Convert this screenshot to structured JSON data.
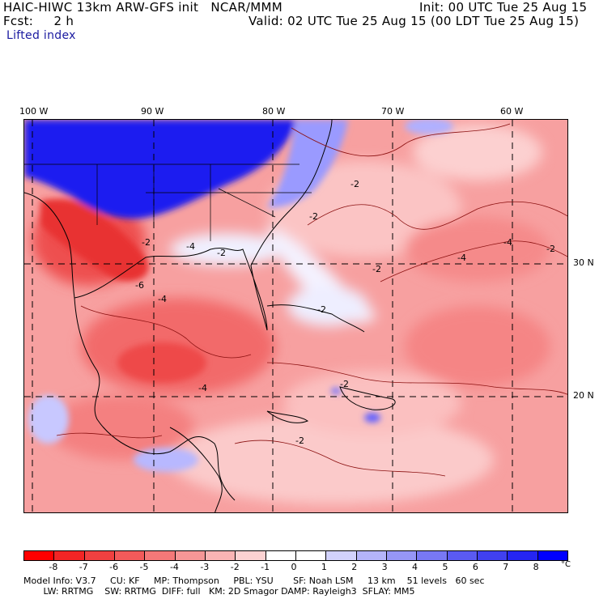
{
  "header": {
    "model_line": "HAIC-HIWC 13km ARW-GFS init   NCAR/MMM",
    "init": "Init: 00 UTC Tue 25 Aug 15",
    "fcst_label": "Fcst:     2 h",
    "valid": "Valid: 02 UTC Tue 25 Aug 15 (00 LDT Tue 25 Aug 15)",
    "field": "Lifted index"
  },
  "axes": {
    "longitudes": [
      "100 W",
      "90 W",
      "80 W",
      "70 W",
      "60 W"
    ],
    "latitudes": [
      "30 N",
      "20 N"
    ]
  },
  "contour_labels": [
    "-2",
    "-2",
    "-2",
    "-2",
    "-2",
    "-2",
    "-2",
    "-2",
    "-2",
    "-4",
    "-4",
    "-4",
    "-4",
    "-4",
    "-6"
  ],
  "colorbar": {
    "unit": "°C",
    "ticks": [
      "-8",
      "-7",
      "-6",
      "-5",
      "-4",
      "-3",
      "-2",
      "-1",
      "0",
      "1",
      "2",
      "3",
      "4",
      "5",
      "6",
      "7",
      "8"
    ],
    "colors": [
      "#ff0000",
      "#f22525",
      "#f04040",
      "#f25a5a",
      "#f47878",
      "#f69696",
      "#fab4b4",
      "#fcd2d2",
      "#ffffff",
      "#ffffff",
      "#d2d2fc",
      "#b4b4fa",
      "#9696f6",
      "#7878f4",
      "#5a5af2",
      "#4040f0",
      "#2525f2",
      "#0000ff"
    ]
  },
  "footer": {
    "line1": "Model Info: V3.7     CU: KF     MP: Thompson     PBL: YSU       SF: Noah LSM     13 km    51 levels   60 sec",
    "line2": "       LW: RRTMG    SW: RRTMG  DIFF: full   KM: 2D Smagor DAMP: Rayleigh3  SFLAY: MM5"
  }
}
